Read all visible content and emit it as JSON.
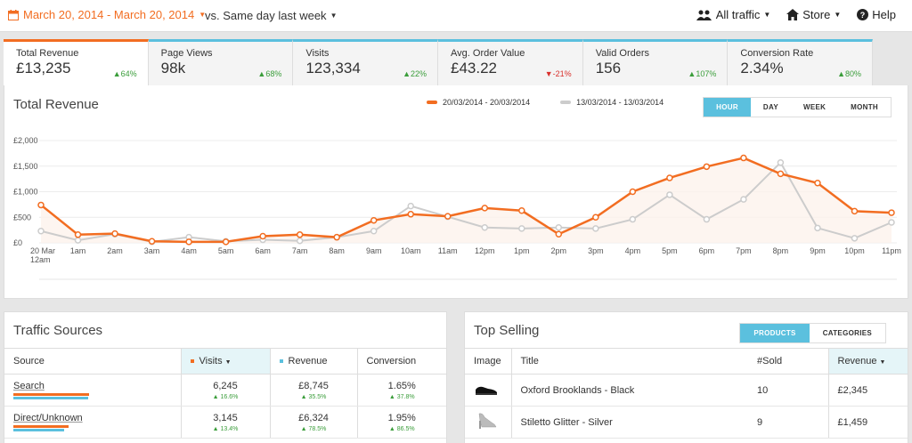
{
  "topbar": {
    "date_range": "March 20, 2014 - March 20, 2014",
    "compare": "vs. Same day last week",
    "nav": [
      {
        "label": "All traffic",
        "icon": "users-icon"
      },
      {
        "label": "Store",
        "icon": "home-icon"
      },
      {
        "label": "Help",
        "icon": "help-icon"
      }
    ]
  },
  "kpis": [
    {
      "label": "Total Revenue",
      "value": "£13,235",
      "change": "64%",
      "direction": "up"
    },
    {
      "label": "Page Views",
      "value": "98k",
      "change": "68%",
      "direction": "up"
    },
    {
      "label": "Visits",
      "value": "123,334",
      "change": "22%",
      "direction": "up"
    },
    {
      "label": "Avg. Order Value",
      "value": "£43.22",
      "change": "-21%",
      "direction": "down"
    },
    {
      "label": "Valid Orders",
      "value": "156",
      "change": "107%",
      "direction": "up"
    },
    {
      "label": "Conversion Rate",
      "value": "2.34%",
      "change": "80%",
      "direction": "up"
    }
  ],
  "main_chart": {
    "title": "Total Revenue",
    "legend": [
      "20/03/2014 - 20/03/2014",
      "13/03/2014 - 13/03/2014"
    ],
    "tabs": [
      "HOUR",
      "DAY",
      "WEEK",
      "MONTH"
    ],
    "active_tab": "HOUR"
  },
  "chart_data": {
    "type": "line",
    "title": "Total Revenue",
    "categories": [
      "20 Mar 12am",
      "1am",
      "2am",
      "3am",
      "4am",
      "5am",
      "6am",
      "7am",
      "8am",
      "9am",
      "10am",
      "11am",
      "12pm",
      "1pm",
      "2pm",
      "3pm",
      "4pm",
      "5pm",
      "6pm",
      "7pm",
      "8pm",
      "9pm",
      "10pm",
      "11pm"
    ],
    "y_ticks": [
      "£2,000",
      "£1,500",
      "£1,000",
      "£500",
      "£0"
    ],
    "ylim": [
      0,
      2000
    ],
    "series": [
      {
        "name": "20/03/2014 - 20/03/2014",
        "color": "#f26d21",
        "values": [
          740,
          160,
          180,
          30,
          20,
          20,
          130,
          160,
          110,
          440,
          560,
          520,
          680,
          630,
          170,
          500,
          1000,
          1270,
          1490,
          1660,
          1350,
          1170,
          620,
          590
        ]
      },
      {
        "name": "13/03/2014 - 13/03/2014",
        "color": "#cccccc",
        "values": [
          230,
          50,
          170,
          20,
          110,
          30,
          60,
          40,
          110,
          230,
          720,
          510,
          300,
          280,
          300,
          280,
          460,
          940,
          460,
          850,
          1570,
          290,
          90,
          400
        ]
      }
    ]
  },
  "traffic": {
    "title": "Traffic Sources",
    "headers": [
      "Source",
      "Visits",
      "Revenue",
      "Conversion"
    ],
    "rows": [
      {
        "source": "Search",
        "visits": "6,245",
        "visits_change": "16.6%",
        "revenue": "£8,745",
        "revenue_change": "35.5%",
        "conversion": "1.65%",
        "conversion_change": "37.8%",
        "bar_orange": 0.85,
        "bar_blue": 0.83
      },
      {
        "source": "Direct/Unknown",
        "visits": "3,145",
        "visits_change": "13.4%",
        "revenue": "£6,324",
        "revenue_change": "78.5%",
        "conversion": "1.95%",
        "conversion_change": "86.5%",
        "bar_orange": 0.62,
        "bar_blue": 0.57
      }
    ]
  },
  "topselling": {
    "title": "Top Selling",
    "tabs": [
      "PRODUCTS",
      "CATEGORIES"
    ],
    "headers": [
      "Image",
      "Title",
      "#Sold",
      "Revenue"
    ],
    "rows": [
      {
        "title": "Oxford Brooklands - Black",
        "sold": "10",
        "revenue": "£2,345"
      },
      {
        "title": "Stiletto Glitter - Silver",
        "sold": "9",
        "revenue": "£1,459"
      }
    ]
  }
}
